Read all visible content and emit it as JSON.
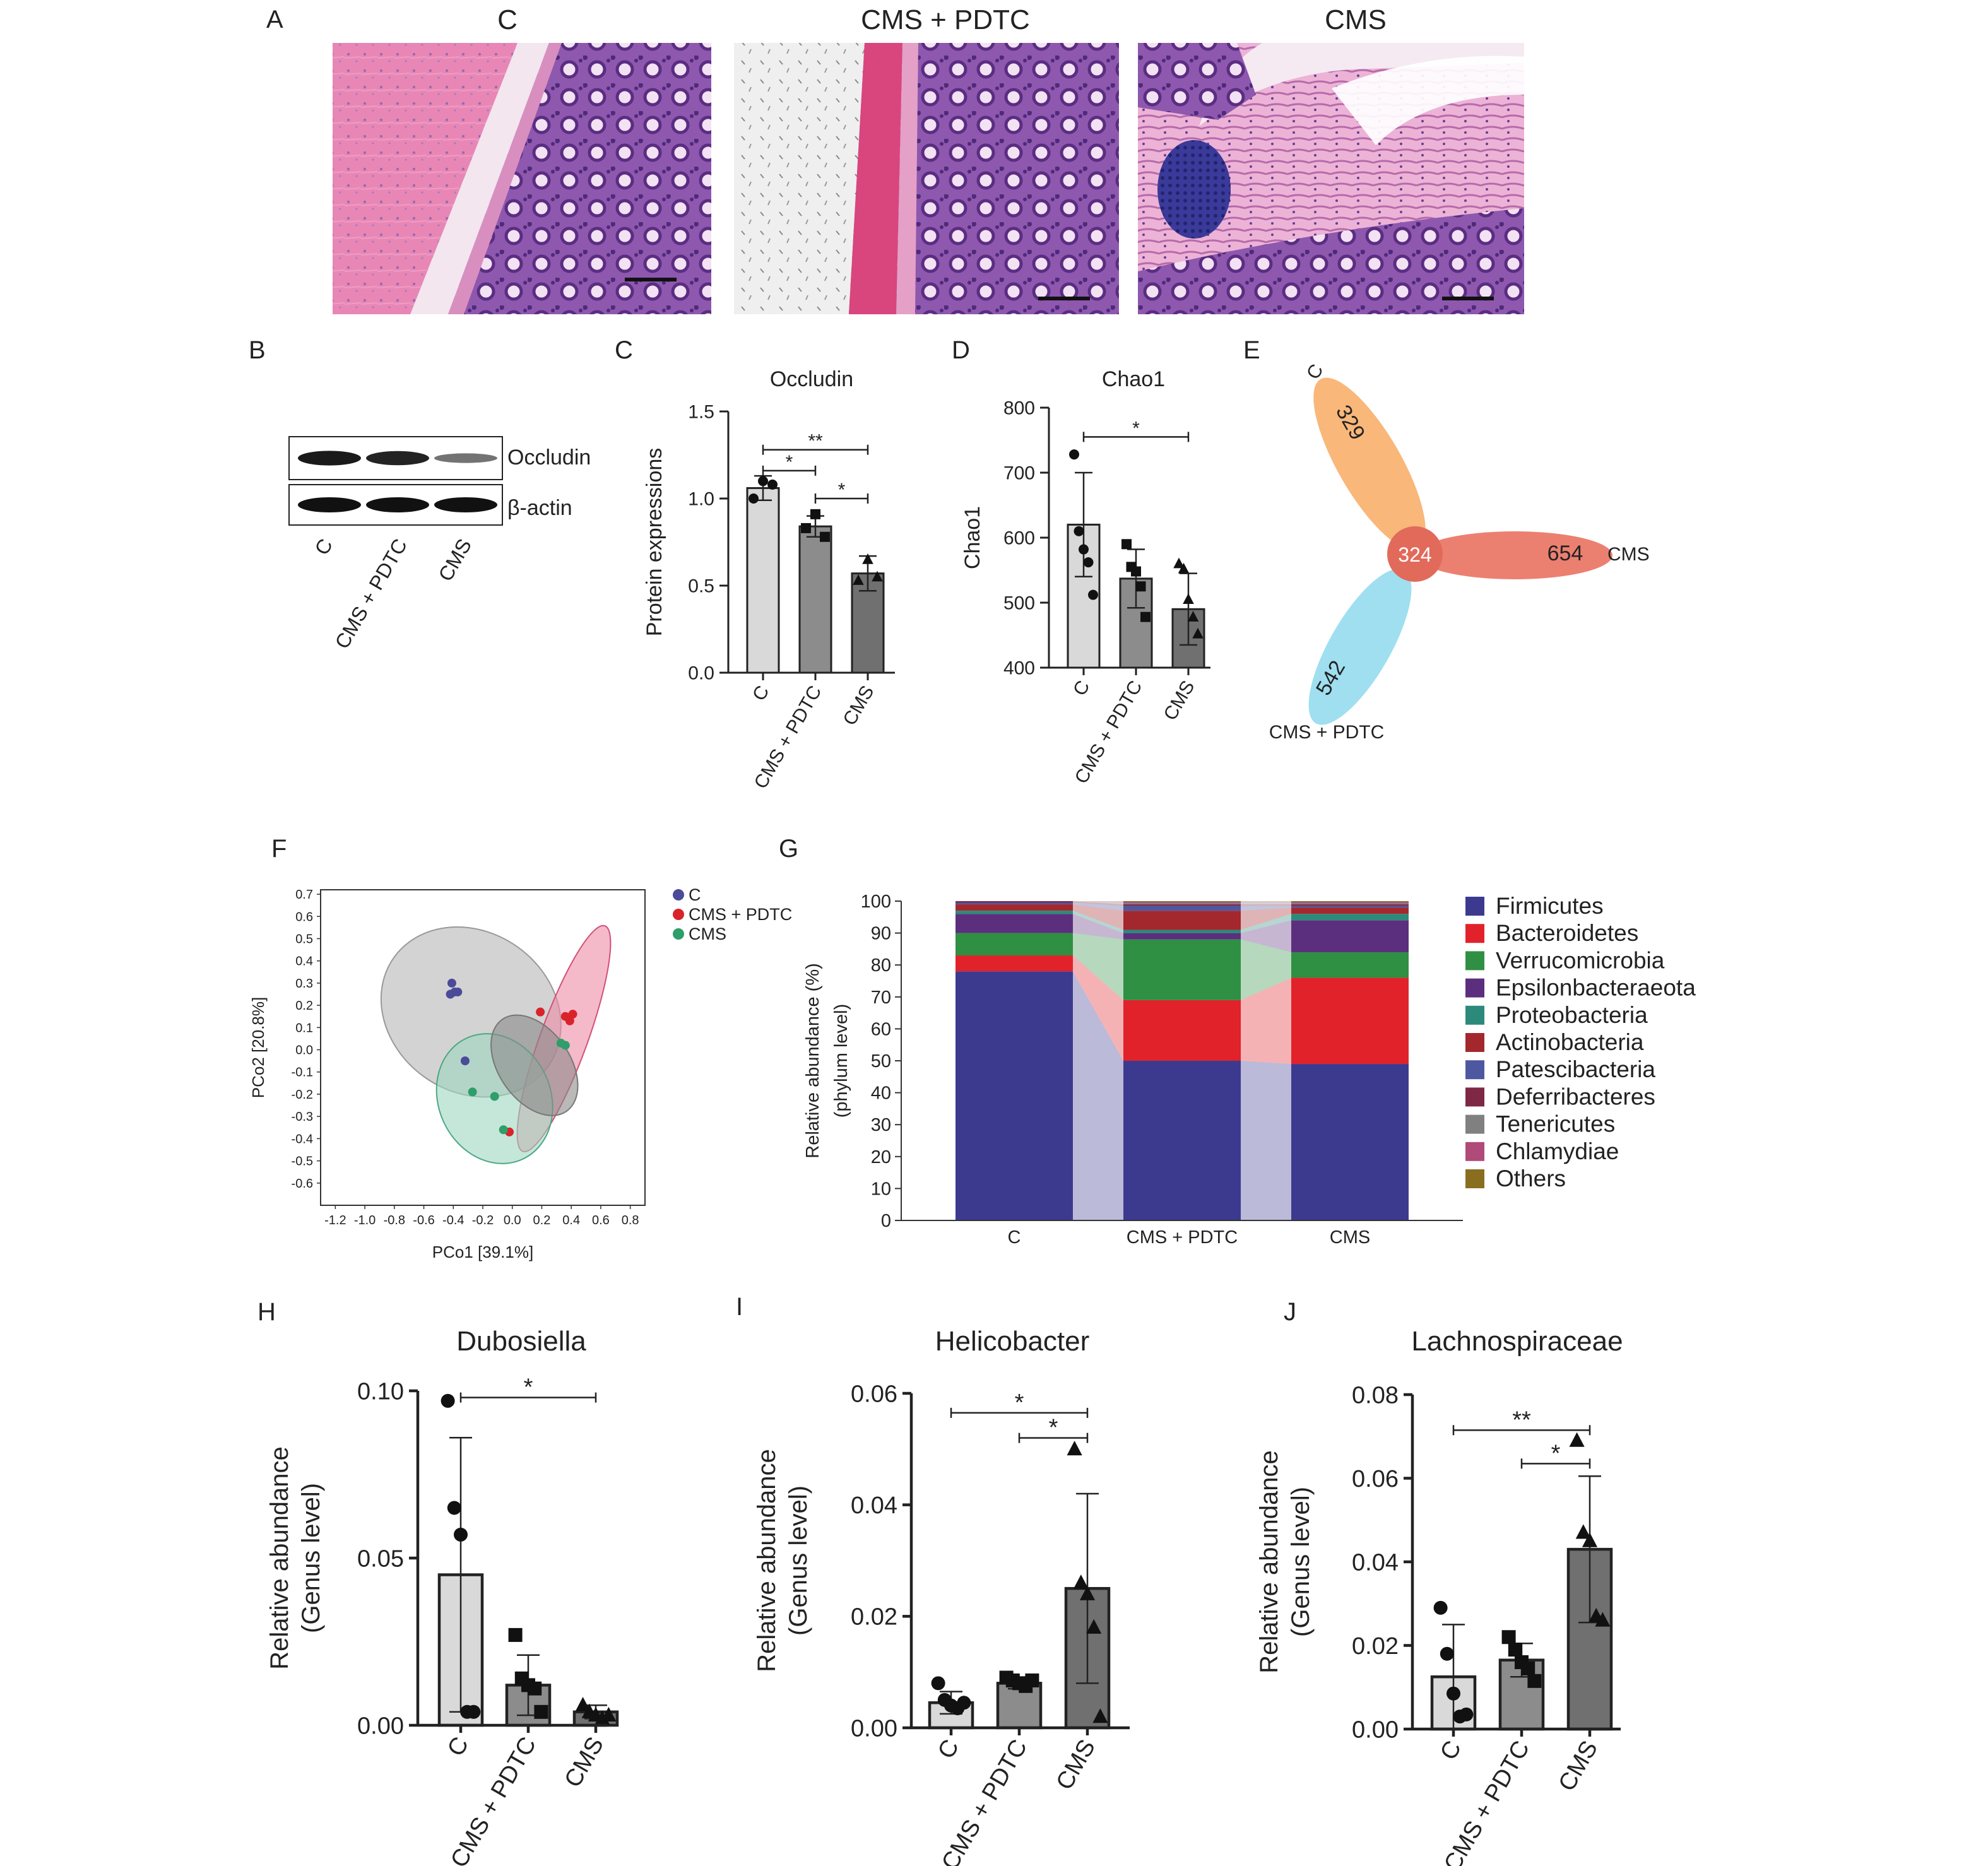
{
  "panel_letters": {
    "a": "A",
    "b": "B",
    "c": "C",
    "d": "D",
    "e": "E",
    "f": "F",
    "g": "G",
    "h": "H",
    "i": "I",
    "j": "J"
  },
  "panel_a": {
    "titles": [
      "C",
      "CMS + PDTC",
      "CMS"
    ]
  },
  "panel_b": {
    "bands": [
      "Occludin",
      "β-actin"
    ],
    "lanes": [
      "C",
      "CMS + PDTC",
      "CMS"
    ],
    "band_intensity": {
      "Occludin": [
        0.95,
        0.9,
        0.45
      ],
      "β-actin": [
        1.0,
        1.0,
        1.0
      ]
    }
  },
  "colors": {
    "bar_c": "#d9d9d9",
    "bar_pdtc": "#8c8c8c",
    "bar_cms": "#707070",
    "venn_c": "#f9b77a",
    "venn_cms": "#ec8070",
    "venn_pdtc": "#9fdff0",
    "venn_core": "#e26a5a"
  },
  "panel_e": {
    "sets": [
      {
        "name": "C",
        "value": "329"
      },
      {
        "name": "CMS",
        "value": "654"
      },
      {
        "name": "CMS + PDTC",
        "value": "542"
      }
    ],
    "core": "324"
  },
  "chart_data": [
    {
      "id": "c",
      "type": "bar",
      "title": "Occludin",
      "ylabel": "Protein expressions",
      "categories": [
        "C",
        "CMS + PDTC",
        "CMS"
      ],
      "values": [
        1.06,
        0.84,
        0.57
      ],
      "errors": [
        0.07,
        0.06,
        0.1
      ],
      "points": [
        [
          1.0,
          1.1,
          1.08
        ],
        [
          0.83,
          0.91,
          0.78
        ],
        [
          0.53,
          0.65,
          0.55
        ]
      ],
      "markers": [
        "circle",
        "square",
        "triangle"
      ],
      "ylim": [
        0,
        1.5
      ],
      "yticks": [
        "0.0",
        "0.5",
        "1.0",
        "1.5"
      ],
      "significance": [
        {
          "from": 0,
          "to": 2,
          "label": "**",
          "y": 1.28
        },
        {
          "from": 0,
          "to": 1,
          "label": "*",
          "y": 1.16
        },
        {
          "from": 1,
          "to": 2,
          "label": "*",
          "y": 1.0
        }
      ]
    },
    {
      "id": "d",
      "type": "bar",
      "title": "Chao1",
      "ylabel": "Chao1",
      "categories": [
        "C",
        "CMS + PDTC",
        "CMS"
      ],
      "values": [
        620,
        537,
        490
      ],
      "errors": [
        80,
        45,
        55
      ],
      "points": [
        [
          728,
          610,
          582,
          562,
          512
        ],
        [
          590,
          555,
          548,
          525,
          478
        ],
        [
          560,
          552,
          505,
          478,
          452
        ]
      ],
      "markers": [
        "circle",
        "square",
        "triangle"
      ],
      "ylim": [
        400,
        800
      ],
      "yticks": [
        "400",
        "500",
        "600",
        "700",
        "800"
      ],
      "significance": [
        {
          "from": 0,
          "to": 2,
          "label": "*",
          "y": 755
        }
      ]
    },
    {
      "id": "f",
      "type": "scatter",
      "xlabel": "PCo1 [39.1%]",
      "ylabel": "PCo2 [20.8%]",
      "xlim": [
        -1.3,
        0.9
      ],
      "ylim": [
        -0.7,
        0.72
      ],
      "xticks": [
        "-1.2",
        "-1.0",
        "-0.8",
        "-0.6",
        "-0.4",
        "-0.2",
        "0.0",
        "0.2",
        "0.4",
        "0.6",
        "0.8"
      ],
      "yticks": [
        "0.7",
        "0.6",
        "0.5",
        "0.4",
        "0.3",
        "0.2",
        "0.1",
        "0.0",
        "-0.1",
        "-0.2",
        "-0.3",
        "-0.4",
        "-0.5",
        "-0.6"
      ],
      "series": [
        {
          "name": "C",
          "color": "#4b4b9a",
          "points": [
            [
              -0.41,
              0.3
            ],
            [
              -0.39,
              0.26
            ],
            [
              -0.42,
              0.25
            ],
            [
              -0.37,
              0.26
            ],
            [
              -0.32,
              -0.05
            ]
          ]
        },
        {
          "name": "CMS + PDTC",
          "color": "#d9232a",
          "points": [
            [
              0.19,
              0.17
            ],
            [
              0.36,
              0.15
            ],
            [
              0.39,
              0.13
            ],
            [
              0.41,
              0.16
            ],
            [
              -0.02,
              -0.37
            ]
          ]
        },
        {
          "name": "CMS",
          "color": "#2e9e6a",
          "points": [
            [
              0.33,
              0.03
            ],
            [
              0.36,
              0.02
            ],
            [
              -0.27,
              -0.19
            ],
            [
              -0.12,
              -0.21
            ],
            [
              -0.06,
              -0.36
            ]
          ]
        }
      ],
      "ellipses": [
        {
          "name": "C",
          "fill": "#b5b5b5",
          "stroke": "#999999",
          "cx": -0.28,
          "cy": 0.17,
          "rx": 0.64,
          "ry": 0.36,
          "rot": 35
        },
        {
          "name": "CMS + PDTC",
          "fill": "#ec8ca5",
          "stroke": "#d34f79",
          "cx": 0.35,
          "cy": 0.05,
          "rx": 0.16,
          "ry": 0.54,
          "rot": 20
        },
        {
          "name": "CMS",
          "fill": "#9ed7c0",
          "stroke": "#4aa884",
          "cx": -0.12,
          "cy": -0.22,
          "rx": 0.38,
          "ry": 0.3,
          "rot": -25
        },
        {
          "name": "overlap",
          "fill": "#8a8a8a",
          "stroke": "#777777",
          "cx": 0.15,
          "cy": -0.07,
          "rx": 0.38,
          "ry": 0.16,
          "rot": 55
        }
      ]
    },
    {
      "id": "g",
      "type": "bar",
      "stacked": true,
      "ylabel": "Relative abundance (%)",
      "ylabel2": "(phylum level)",
      "categories": [
        "C",
        "CMS + PDTC",
        "CMS"
      ],
      "ylim": [
        0,
        100
      ],
      "yticks": [
        "0",
        "10",
        "20",
        "30",
        "40",
        "50",
        "60",
        "70",
        "80",
        "90",
        "100"
      ],
      "series": [
        {
          "name": "Firmicutes",
          "color": "#3c3a8f",
          "values": [
            78,
            50,
            49
          ]
        },
        {
          "name": "Bacteroidetes",
          "color": "#e1222a",
          "values": [
            5,
            19,
            27
          ]
        },
        {
          "name": "Verrucomicrobia",
          "color": "#2f8f43",
          "values": [
            7,
            19,
            8
          ]
        },
        {
          "name": "Epsilonbacteraeota",
          "color": "#5b2f7e",
          "values": [
            6,
            2,
            10
          ]
        },
        {
          "name": "Proteobacteria",
          "color": "#2b8a7a",
          "values": [
            1,
            1,
            2
          ]
        },
        {
          "name": "Actinobacteria",
          "color": "#a3282e",
          "values": [
            2,
            6,
            2
          ]
        },
        {
          "name": "Patescibacteria",
          "color": "#4e58a0",
          "values": [
            0.5,
            1.5,
            0.5
          ]
        },
        {
          "name": "Deferribacteres",
          "color": "#7e2845",
          "values": [
            0.5,
            0.5,
            0.5
          ]
        },
        {
          "name": "Tenericutes",
          "color": "#808080",
          "values": [
            0,
            0.5,
            0.5
          ]
        },
        {
          "name": "Chlamydiae",
          "color": "#b04a78",
          "values": [
            0,
            0.3,
            0.3
          ]
        },
        {
          "name": "Others",
          "color": "#8a6e1f",
          "values": [
            0,
            0.2,
            0.2
          ]
        }
      ]
    },
    {
      "id": "h",
      "type": "bar",
      "title": "Dubosiella",
      "ylabel": "Relative abundance",
      "ylabel2": "(Genus level)",
      "categories": [
        "C",
        "CMS + PDTC",
        "CMS"
      ],
      "values": [
        0.045,
        0.012,
        0.004
      ],
      "errors": [
        0.041,
        0.009,
        0.002
      ],
      "points": [
        [
          0.097,
          0.065,
          0.057,
          0.004,
          0.004
        ],
        [
          0.027,
          0.014,
          0.012,
          0.011,
          0.004
        ],
        [
          0.006,
          0.004,
          0.003,
          0.002,
          0.003
        ]
      ],
      "markers": [
        "circle",
        "square",
        "triangle"
      ],
      "ylim": [
        0,
        0.1
      ],
      "yticks": [
        "0.00",
        "0.05",
        "0.10"
      ],
      "significance": [
        {
          "from": 0,
          "to": 2,
          "label": "*",
          "y": 0.098
        }
      ]
    },
    {
      "id": "i",
      "type": "bar",
      "title": "Helicobacter",
      "ylabel": "Relative abundance",
      "ylabel2": "(Genus level)",
      "categories": [
        "C",
        "CMS + PDTC",
        "CMS"
      ],
      "values": [
        0.0045,
        0.008,
        0.025
      ],
      "errors": [
        0.002,
        0.001,
        0.017
      ],
      "points": [
        [
          0.008,
          0.005,
          0.004,
          0.0035,
          0.0045
        ],
        [
          0.009,
          0.0085,
          0.008,
          0.0075,
          0.0085
        ],
        [
          0.05,
          0.026,
          0.024,
          0.018,
          0.002
        ]
      ],
      "markers": [
        "circle",
        "square",
        "triangle"
      ],
      "ylim": [
        0,
        0.06
      ],
      "yticks": [
        "0.00",
        "0.02",
        "0.04",
        "0.06"
      ],
      "significance": [
        {
          "from": 0,
          "to": 2,
          "label": "*",
          "y": 0.0565
        },
        {
          "from": 1,
          "to": 2,
          "label": "*",
          "y": 0.052
        }
      ]
    },
    {
      "id": "j",
      "type": "bar",
      "title": "Lachnospiraceae",
      "ylabel": "Relative abundance",
      "ylabel2": "(Genus level)",
      "categories": [
        "C",
        "CMS + PDTC",
        "CMS"
      ],
      "values": [
        0.0125,
        0.0165,
        0.043
      ],
      "errors": [
        0.0125,
        0.004,
        0.0175
      ],
      "points": [
        [
          0.029,
          0.018,
          0.0085,
          0.003,
          0.0035
        ],
        [
          0.022,
          0.019,
          0.016,
          0.0145,
          0.0115
        ],
        [
          0.069,
          0.047,
          0.045,
          0.027,
          0.026
        ]
      ],
      "markers": [
        "circle",
        "square",
        "triangle"
      ],
      "ylim": [
        0,
        0.08
      ],
      "yticks": [
        "0.00",
        "0.02",
        "0.04",
        "0.06",
        "0.08"
      ],
      "significance": [
        {
          "from": 0,
          "to": 2,
          "label": "**",
          "y": 0.0715
        },
        {
          "from": 1,
          "to": 2,
          "label": "*",
          "y": 0.0635
        }
      ]
    }
  ]
}
